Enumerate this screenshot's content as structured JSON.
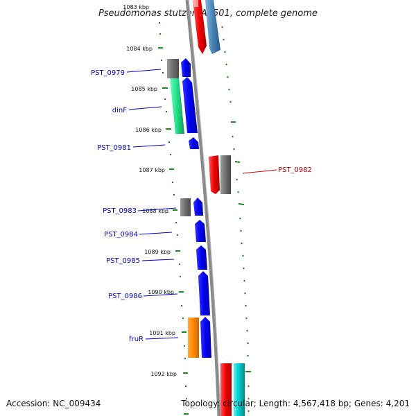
{
  "title": "Pseudomonas stutzeri A1501, complete genome",
  "accession_text": "Accession: NC_009434",
  "topology_text": "Topology: circular; Length: 4,567,418 bp; Genes: 4,201",
  "ticks": [
    "1083 kbp",
    "1084 kbp",
    "1085 kbp",
    "1086 kbp",
    "1087 kbp",
    "1088 kbp",
    "1089 kbp",
    "1090 kbp",
    "1091 kbp",
    "1092 kbp"
  ],
  "colors": {
    "gene_label_blue": "#0000cc",
    "gene_label_red": "#cc0000",
    "dotted_ring": "#1a8a1a",
    "backbone": "#888888",
    "blue_feature": "#0000ee",
    "red_feature": "#ee0000",
    "gray_feature": "#707070",
    "green_feature": "#22dd88",
    "orange_feature": "#ff8800",
    "cyan_feature": "#00cccc",
    "steelblue_feature": "#4682b4"
  },
  "gene_labels": [
    {
      "text": "PST_0979",
      "color": "blue"
    },
    {
      "text": "dinF",
      "color": "blue"
    },
    {
      "text": "PST_0981",
      "color": "blue"
    },
    {
      "text": "PST_0982",
      "color": "red"
    },
    {
      "text": "PST_0983",
      "color": "blue"
    },
    {
      "text": "PST_0984",
      "color": "blue"
    },
    {
      "text": "PST_0985",
      "color": "blue"
    },
    {
      "text": "PST_0986",
      "color": "blue"
    },
    {
      "text": "fruR",
      "color": "blue"
    }
  ]
}
